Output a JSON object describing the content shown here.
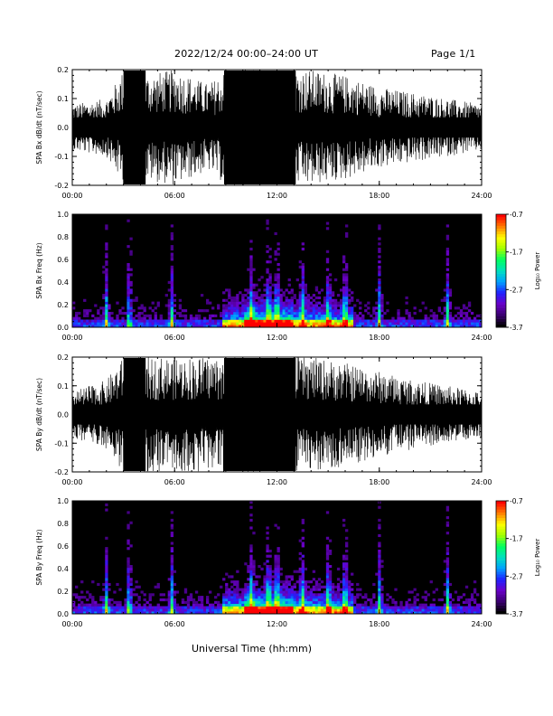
{
  "header": {
    "title": "2022/12/24  00:00–24:00 UT",
    "page": "Page 1/1"
  },
  "footer": {
    "xlabel": "Universal Time (hh:mm)"
  },
  "colors": {
    "trace": "#000000",
    "spectrogram_background": "#000000",
    "colormap": [
      "#000000",
      "#3a0070",
      "#6a00c8",
      "#2020ff",
      "#00a0ff",
      "#00e0c0",
      "#00ff60",
      "#a0ff00",
      "#ffff00",
      "#ff8000",
      "#ff0000"
    ]
  },
  "chart_data": [
    {
      "type": "line",
      "ylabel": "SPA Bx dB/dt (nT/sec)",
      "ylim": [
        -0.2,
        0.2
      ],
      "yticks": [
        "-0.2",
        "-0.1",
        "0.0",
        "0.1",
        "0.2"
      ],
      "xlim": [
        "00:00",
        "24:00"
      ],
      "xticks": [
        "00:00",
        "06:00",
        "12:00",
        "18:00",
        "24:00"
      ],
      "grid": false,
      "series": [
        {
          "x": [
            "00:00",
            "02:00",
            "03:00",
            "04:00",
            "06:00",
            "08:00",
            "09:00",
            "10:00",
            "11:00",
            "12:00",
            "13:00",
            "14:00",
            "16:00",
            "18:00",
            "20:00",
            "22:00",
            "24:00"
          ],
          "amplitude": [
            0.08,
            0.1,
            0.2,
            0.18,
            0.2,
            0.15,
            0.2,
            0.2,
            0.2,
            0.2,
            0.2,
            0.2,
            0.18,
            0.14,
            0.12,
            0.1,
            0.08
          ]
        }
      ]
    },
    {
      "type": "heatmap",
      "ylabel": "SPA Bx Freq (Hz)",
      "ylim": [
        0.0,
        1.0
      ],
      "yticks": [
        "0.0",
        "0.2",
        "0.4",
        "0.6",
        "0.8",
        "1.0"
      ],
      "xticks": [
        "00:00",
        "06:00",
        "12:00",
        "18:00",
        "24:00"
      ],
      "colorbar": {
        "label": "Log₁₀ Power",
        "min": -3.7,
        "max": -0.7,
        "ticks": [
          "-0.7",
          "-1.7",
          "-2.7",
          "-3.7"
        ]
      },
      "hot_times": [
        "02:00",
        "03:20",
        "05:50",
        "10:30",
        "11:30",
        "12:00",
        "13:30",
        "15:00",
        "16:00",
        "18:00",
        "22:00"
      ]
    },
    {
      "type": "line",
      "ylabel": "SPA By dB/dt (nT/sec)",
      "ylim": [
        -0.2,
        0.2
      ],
      "yticks": [
        "-0.2",
        "-0.1",
        "0.0",
        "0.1",
        "0.2"
      ],
      "xlim": [
        "00:00",
        "24:00"
      ],
      "xticks": [
        "00:00",
        "06:00",
        "12:00",
        "18:00",
        "24:00"
      ],
      "grid": false,
      "series": [
        {
          "x": [
            "00:00",
            "02:00",
            "03:00",
            "04:00",
            "06:00",
            "08:00",
            "09:00",
            "10:00",
            "11:00",
            "12:00",
            "13:00",
            "14:00",
            "16:00",
            "18:00",
            "20:00",
            "22:00",
            "24:00"
          ],
          "amplitude": [
            0.08,
            0.12,
            0.2,
            0.2,
            0.2,
            0.2,
            0.2,
            0.2,
            0.2,
            0.2,
            0.2,
            0.2,
            0.18,
            0.15,
            0.12,
            0.1,
            0.08
          ]
        }
      ]
    },
    {
      "type": "heatmap",
      "ylabel": "SPA By Freq (Hz)",
      "ylim": [
        0.0,
        1.0
      ],
      "yticks": [
        "0.0",
        "0.2",
        "0.4",
        "0.6",
        "0.8",
        "1.0"
      ],
      "xticks": [
        "00:00",
        "06:00",
        "12:00",
        "18:00",
        "24:00"
      ],
      "colorbar": {
        "label": "Log₁₀ Power",
        "min": -3.7,
        "max": -0.7,
        "ticks": [
          "-0.7",
          "-1.7",
          "-2.7",
          "-3.7"
        ]
      },
      "hot_times": [
        "02:00",
        "03:20",
        "05:50",
        "10:30",
        "11:30",
        "12:00",
        "13:30",
        "15:00",
        "16:00",
        "18:00",
        "22:00"
      ]
    }
  ]
}
